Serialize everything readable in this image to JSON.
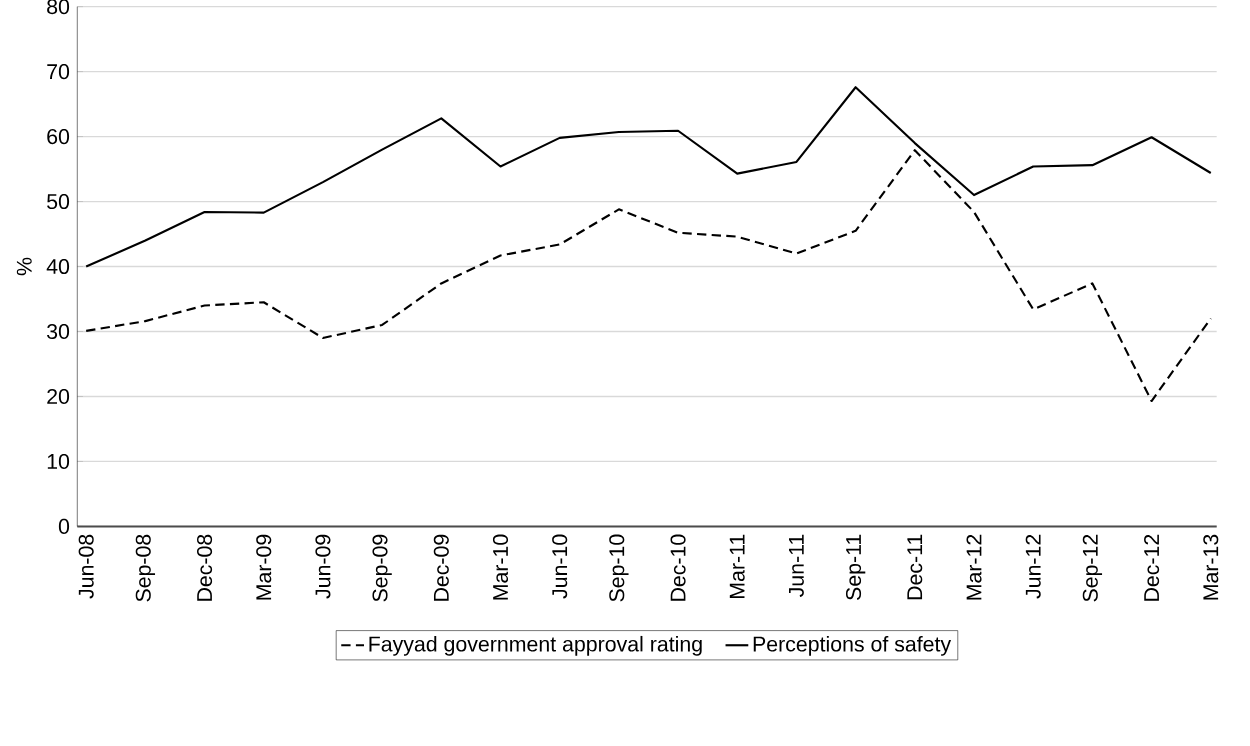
{
  "chart_data": {
    "type": "line",
    "ylabel": "%",
    "categories": [
      "Jun-08",
      "Sep-08",
      "Dec-08",
      "Mar-09",
      "Jun-09",
      "Sep-09",
      "Dec-09",
      "Mar-10",
      "Jun-10",
      "Sep-10",
      "Dec-10",
      "Mar-11",
      "Jun-11",
      "Sep-11",
      "Dec-11",
      "Mar-12",
      "Jun-12",
      "Sep-12",
      "Dec-12",
      "Mar-13"
    ],
    "series": [
      {
        "name": "Fayyad government approval rating",
        "color": "#000000",
        "line_style": "dashed",
        "values": [
          30.1,
          31.6,
          34.0,
          34.5,
          29,
          31,
          37.4,
          41.7,
          43.4,
          48.8,
          45.2,
          44.6,
          42.0,
          45.5,
          57.9,
          48.4,
          33.4,
          37.4,
          19.3,
          32.0
        ]
      },
      {
        "name": "Perceptions of safety",
        "color": "#000000",
        "line_style": "solid",
        "values": [
          40,
          44,
          48.4,
          48.3,
          53,
          58,
          62.8,
          55.4,
          59.8,
          60.7,
          60.9,
          54.3,
          56.1,
          67.6,
          59.0,
          51.0,
          55.4,
          55.6,
          59.9,
          54.4
        ]
      }
    ],
    "ylim": [
      0,
      80
    ],
    "yticks": [
      0,
      10,
      20,
      30,
      40,
      50,
      60,
      70,
      80
    ],
    "grid": "y",
    "legend": "bottom",
    "marker": "none"
  }
}
